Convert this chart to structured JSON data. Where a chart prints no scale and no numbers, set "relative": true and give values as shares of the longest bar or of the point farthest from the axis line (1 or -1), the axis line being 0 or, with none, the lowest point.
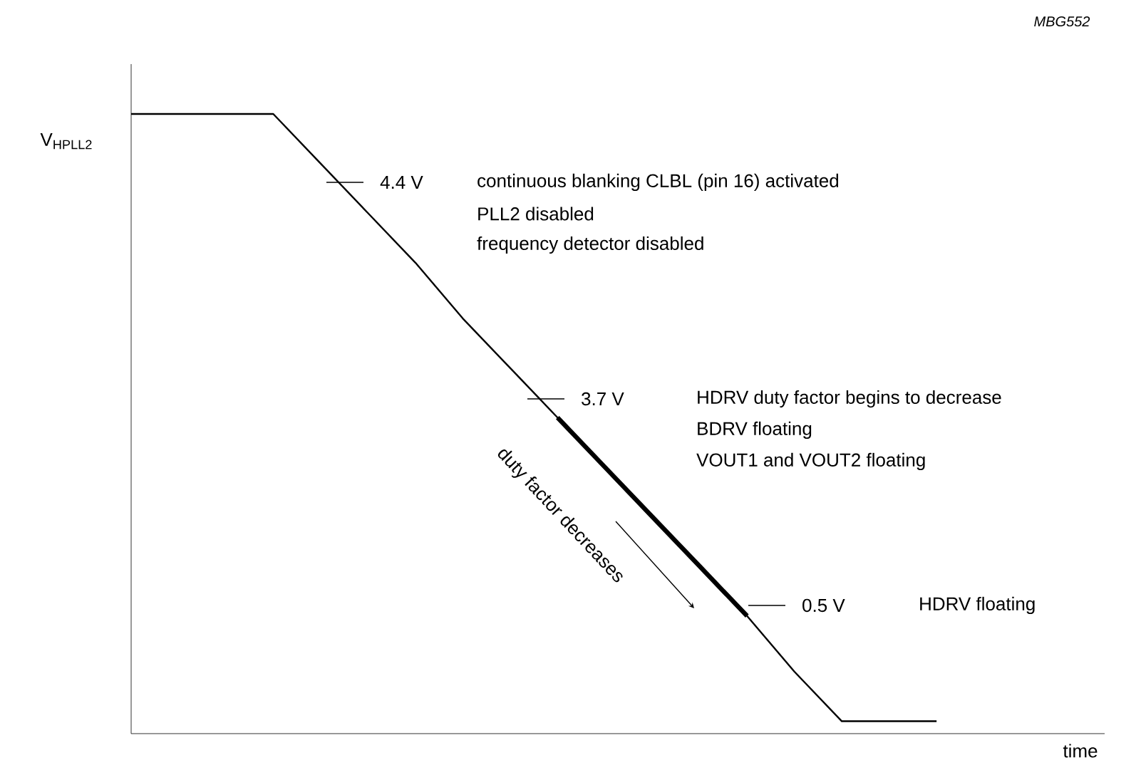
{
  "chart_data": {
    "type": "line",
    "relative": true,
    "ylabel": "V$_{HPLL2}$",
    "categories": [
      null,
      null,
      null,
      null,
      null,
      null,
      null,
      null,
      null,
      null,
      null,
      null,
      null,
      null,
      null,
      null,
      null,
      null
    ],
    "series": [
      {
        "color": "#000000",
        "values": [
          1,
          1,
          1,
          1,
          0.92,
          0.84,
          0.76,
          0.67,
          0.59,
          0.51,
          0.43,
          0.35,
          0.27,
          0.19,
          0.1,
          0.02,
          0.02,
          0.02
        ]
      },
      {
        "color": "#000000",
        "values": [
          null,
          null,
          null,
          null,
          null,
          null,
          null,
          null,
          null,
          0.51,
          0.43,
          0.35,
          0.27,
          0.19,
          null,
          null,
          null,
          null
        ]
      }
    ],
    "annotations": [
      "MBG552",
      "4.4 V",
      "continuous blanking CLBL (pin 16) activated",
      "PLL2 disabled",
      "frequency detector disabled",
      "3.7 V",
      "HDRV duty factor begins to decrease",
      "BDRV floating",
      "VOUT1 and VOUT2 floating",
      "0.5 V",
      "HDRV floating",
      "duty factor decreases",
      "time"
    ]
  }
}
